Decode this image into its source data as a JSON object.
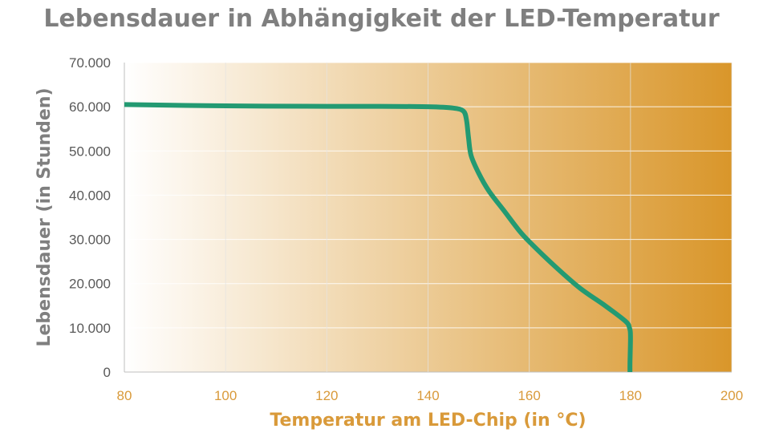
{
  "chart_data": {
    "type": "line",
    "title": "Lebensdauer in Abhängigkeit der LED-Temperatur",
    "xlabel": "Temperatur am LED-Chip (in °C)",
    "ylabel": "Lebensdauer (in Stunden)",
    "xlim": [
      80,
      200
    ],
    "ylim": [
      0,
      70000
    ],
    "x_ticks": [
      80,
      100,
      120,
      140,
      160,
      180,
      200
    ],
    "x_tick_labels": [
      "80",
      "100",
      "120",
      "140",
      "160",
      "180",
      "200"
    ],
    "y_ticks": [
      0,
      10000,
      20000,
      30000,
      40000,
      50000,
      60000,
      70000
    ],
    "y_tick_labels": [
      "0",
      "10.000",
      "20.000",
      "30.000",
      "40.000",
      "50.000",
      "60.000",
      "70.000"
    ],
    "grid": true,
    "background_gradient": [
      "#ffffff",
      "#d9962a"
    ],
    "series": [
      {
        "color": "#239a72",
        "x": [
          80,
          100,
          120,
          130,
          140,
          145,
          147,
          147.6,
          148,
          148.5,
          150,
          152,
          155,
          158,
          160,
          165,
          170,
          175,
          179,
          179.8,
          180,
          179.9,
          179.9
        ],
        "y": [
          60500,
          60200,
          60100,
          60100,
          60000,
          59700,
          59000,
          57000,
          53000,
          49000,
          45000,
          41000,
          36500,
          32000,
          29500,
          24000,
          19000,
          15000,
          11500,
          10000,
          8000,
          2000,
          0
        ]
      }
    ]
  }
}
